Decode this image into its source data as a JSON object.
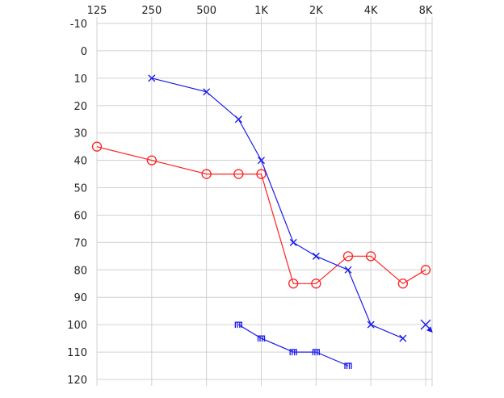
{
  "chart_data": {
    "type": "line",
    "x_ticks": [
      "125",
      "250",
      "500",
      "1K",
      "2K",
      "4K",
      "8K"
    ],
    "x_tick_freqs": [
      125,
      250,
      500,
      1000,
      2000,
      4000,
      8000
    ],
    "y_ticks": [
      "-10",
      "0",
      "10",
      "20",
      "30",
      "40",
      "50",
      "60",
      "70",
      "80",
      "90",
      "100",
      "110",
      "120"
    ],
    "xlim": [
      125,
      8000
    ],
    "x_scale": "log2",
    "ylim": [
      -10,
      120
    ],
    "y_inverted": true,
    "grid": true,
    "series": [
      {
        "marker": "circle",
        "color": "#ff2020",
        "points": [
          [
            125,
            35
          ],
          [
            250,
            40
          ],
          [
            500,
            45
          ],
          [
            750,
            45
          ],
          [
            1000,
            45
          ],
          [
            1500,
            85
          ],
          [
            2000,
            85
          ],
          [
            3000,
            75
          ],
          [
            4000,
            75
          ],
          [
            6000,
            85
          ],
          [
            8000,
            80
          ]
        ]
      },
      {
        "marker": "cross",
        "color": "#1a1aee",
        "points": [
          [
            250,
            10
          ],
          [
            500,
            15
          ],
          [
            750,
            25
          ],
          [
            1000,
            40
          ],
          [
            1500,
            70
          ],
          [
            2000,
            75
          ],
          [
            3000,
            80
          ],
          [
            4000,
            100
          ],
          [
            6000,
            105
          ]
        ],
        "no_response_point": [
          8000,
          100
        ]
      },
      {
        "marker": "bracket",
        "color": "#1a1aee",
        "points": [
          [
            750,
            100
          ],
          [
            1000,
            105
          ],
          [
            1500,
            110
          ],
          [
            2000,
            110
          ],
          [
            3000,
            115
          ]
        ]
      }
    ]
  }
}
